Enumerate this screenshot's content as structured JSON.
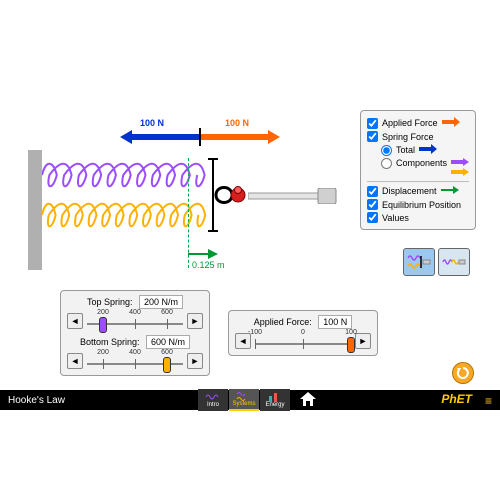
{
  "title": "Hooke's Law",
  "brand": "PhET",
  "colors": {
    "applied_force": "#ff6600",
    "spring_force": "#0033cc",
    "displacement": "#009933",
    "equilibrium": "#00aa44",
    "components_top": "#9b4dff",
    "components_bottom": "#ffb000",
    "wall": "#b0b0b0",
    "gripper_black": "#000000",
    "gripper_red": "#d62020",
    "piston_gray": "#d0d0d0",
    "panel_bg": "#f5f5f5",
    "selected_icon_bg": "#9cc8f0",
    "unselected_icon_bg": "#d8e6f2",
    "reset": "#f9a825",
    "phet": "#ffcc00"
  },
  "forces": {
    "applied": {
      "label": "100 N",
      "value": 100,
      "direction": "right"
    },
    "spring": {
      "label": "100 N",
      "value": 100,
      "direction": "left"
    }
  },
  "displacement": {
    "label": "0.125 m",
    "value": 0.125
  },
  "springs": {
    "top": {
      "color": "#9b4dff",
      "coils": 11
    },
    "bottom": {
      "color": "#ffb000",
      "coils": 12
    }
  },
  "controls": {
    "applied_force": {
      "label": "Applied Force",
      "checked": true
    },
    "spring_force": {
      "label": "Spring Force",
      "checked": true
    },
    "total": {
      "label": "Total",
      "selected": true
    },
    "components": {
      "label": "Components",
      "selected": false
    },
    "displacement": {
      "label": "Displacement",
      "checked": true
    },
    "equilibrium": {
      "label": "Equilibrium Position",
      "checked": true
    },
    "values": {
      "label": "Values",
      "checked": true
    }
  },
  "sliders": {
    "top_spring": {
      "title": "Top Spring:",
      "value_label": "200 N/m",
      "ticks": [
        "200",
        "400",
        "600"
      ],
      "min": 100,
      "max": 700,
      "value": 200,
      "knob_color": "#9b4dff"
    },
    "bottom_spring": {
      "title": "Bottom Spring:",
      "value_label": "600 N/m",
      "ticks": [
        "200",
        "400",
        "600"
      ],
      "min": 100,
      "max": 700,
      "value": 600,
      "knob_color": "#ffb000"
    },
    "applied_force": {
      "title": "Applied Force:",
      "value_label": "100 N",
      "ticks": [
        "-100",
        "0",
        "100"
      ],
      "min": -100,
      "max": 100,
      "value": 100,
      "knob_color": "#ff6600"
    }
  },
  "nav": {
    "tabs": [
      {
        "label": "Intro",
        "active": false
      },
      {
        "label": "Systems",
        "active": true
      },
      {
        "label": "Energy",
        "active": false
      }
    ]
  }
}
